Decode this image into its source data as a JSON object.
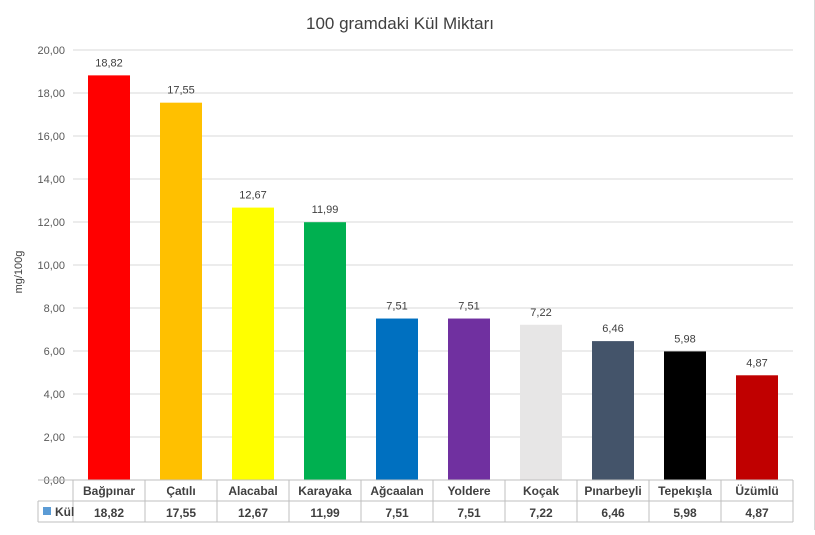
{
  "chart_data": {
    "type": "bar",
    "title": "100 gramdaki Kül Miktarı",
    "ylabel": "mg/100g",
    "xlabel": "",
    "ylim": [
      0,
      20
    ],
    "yticks": [
      "0,00",
      "2,00",
      "4,00",
      "6,00",
      "8,00",
      "10,00",
      "12,00",
      "14,00",
      "16,00",
      "18,00",
      "20,00"
    ],
    "categories": [
      "Bağpınar",
      "Çatılı",
      "Alacabal",
      "Karayaka",
      "Ağcaalan",
      "Yoldere",
      "Koçak",
      "Pınarbeyli",
      "Tepekışla",
      "Üzümlü"
    ],
    "values": [
      18.82,
      17.55,
      12.67,
      11.99,
      7.51,
      7.51,
      7.22,
      6.46,
      5.98,
      4.87
    ],
    "value_labels": [
      "18,82",
      "17,55",
      "12,67",
      "11,99",
      "7,51",
      "7,51",
      "7,22",
      "6,46",
      "5,98",
      "4,87"
    ],
    "colors": [
      "#ff0000",
      "#ffc000",
      "#ffff00",
      "#00b050",
      "#0070c0",
      "#7030a0",
      "#e7e6e6",
      "#44546a",
      "#000000",
      "#c00000"
    ],
    "grid": true,
    "data_table": {
      "series_name": "Kül",
      "legend_key_color": "#5b9bd5",
      "values": [
        "18,82",
        "17,55",
        "12,67",
        "11,99",
        "7,51",
        "7,51",
        "7,22",
        "6,46",
        "5,98",
        "4,87"
      ]
    }
  }
}
